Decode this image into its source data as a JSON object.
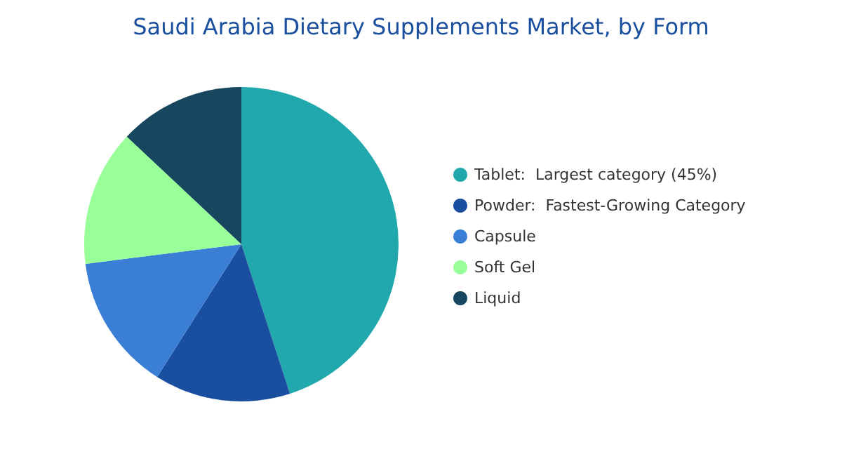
{
  "chart_data": {
    "type": "pie",
    "title": "Saudi Arabia Dietary Supplements Market, by Form",
    "categories": [
      "Tablet:  Largest category (45%)",
      "Powder:  Fastest-Growing Category",
      "Capsule",
      "Soft Gel",
      "Liquid"
    ],
    "values": [
      45,
      14,
      14,
      14,
      13
    ],
    "colors": [
      "#20a8ac",
      "#1a4fa0",
      "#3a7fd5",
      "#99ff99",
      "#17465f"
    ],
    "legend": "right"
  }
}
